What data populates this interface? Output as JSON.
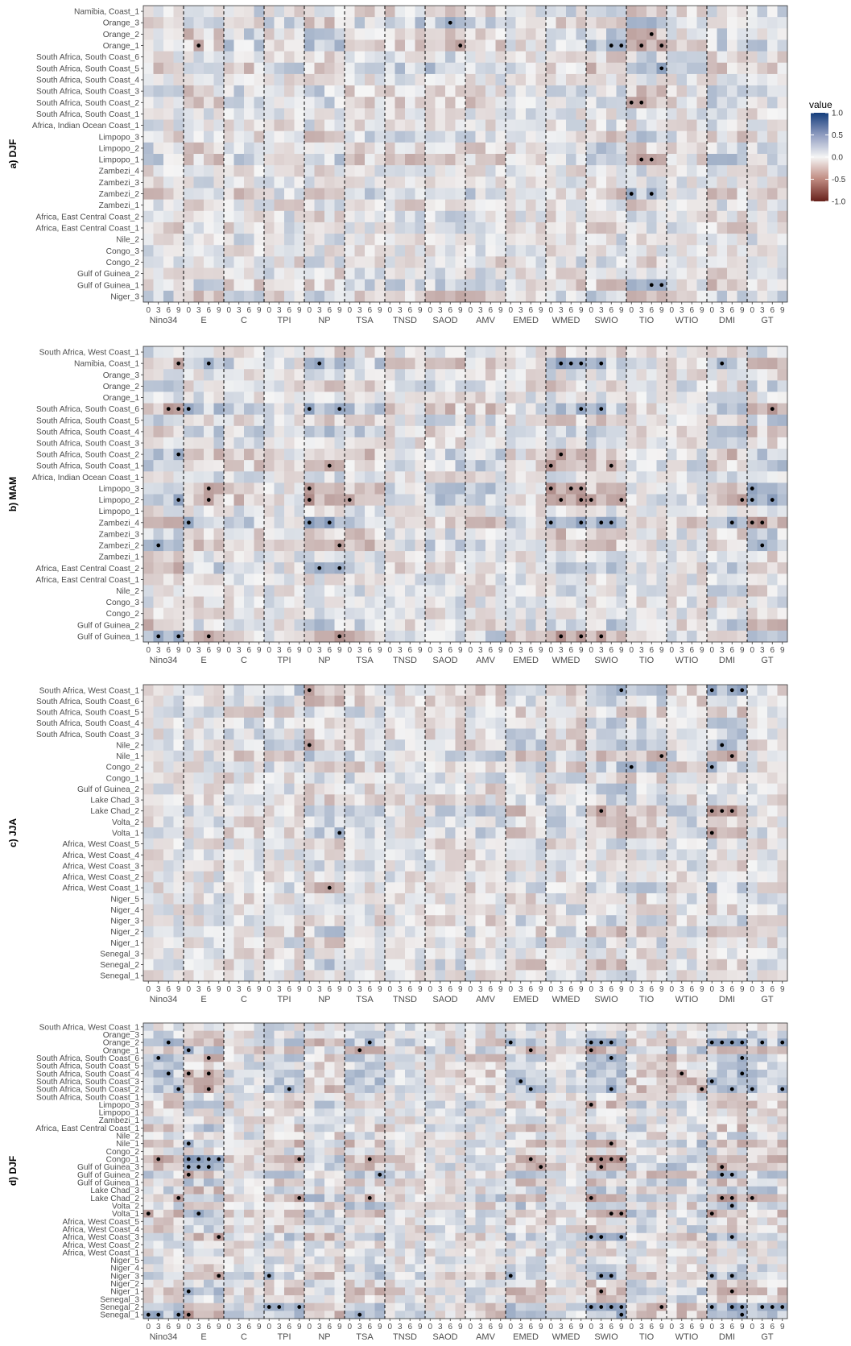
{
  "legend": {
    "title": "value",
    "ticks": [
      "1.0",
      "0.5",
      "0.0",
      "-0.5",
      "-1.0"
    ],
    "tick_values": [
      1.0,
      0.5,
      0.0,
      -0.5,
      -1.0
    ],
    "low_color": "#67211b",
    "mid_color": "#f5f5f5",
    "high_color": "#143d7c"
  },
  "chart_data": [
    {
      "type": "heatmap",
      "panel_label": "a) DJF",
      "x_groups": [
        "Nino34",
        "E",
        "C",
        "TPI",
        "NP",
        "TSA",
        "TNSD",
        "SAOD",
        "AMV",
        "EMED",
        "WMED",
        "SWIO",
        "TIO",
        "WTIO",
        "DMI",
        "GT"
      ],
      "x_lags": [
        "0",
        "3",
        "6",
        "9"
      ],
      "rows": [
        "Namibia, Coast_1",
        "Orange_3",
        "Orange_2",
        "Orange_1",
        "South Africa, South Coast_6",
        "South Africa, South Coast_5",
        "South Africa, South Coast_4",
        "South Africa, South Coast_3",
        "South Africa, South Coast_2",
        "South Africa, South Coast_1",
        "Africa, Indian Ocean Coast_1",
        "Limpopo_3",
        "Limpopo_2",
        "Limpopo_1",
        "Zambezi_4",
        "Zambezi_3",
        "Zambezi_2",
        "Zambezi_1",
        "Africa, East Central Coast_2",
        "Africa, East Central Coast_1",
        "Nile_2",
        "Congo_3",
        "Congo_2",
        "Gulf of Guinea_2",
        "Gulf of Guinea_1",
        "Niger_3"
      ],
      "value_range": [
        -1.0,
        1.0
      ],
      "note": "cell values estimated from colour; dots mark significant correlations"
    },
    {
      "type": "heatmap",
      "panel_label": "b) MAM",
      "x_groups": [
        "Nino34",
        "E",
        "C",
        "TPI",
        "NP",
        "TSA",
        "TNSD",
        "SAOD",
        "AMV",
        "EMED",
        "WMED",
        "SWIO",
        "TIO",
        "WTIO",
        "DMI",
        "GT"
      ],
      "x_lags": [
        "0",
        "3",
        "6",
        "9"
      ],
      "rows": [
        "South Africa, West Coast_1",
        "Namibia, Coast_1",
        "Orange_3",
        "Orange_2",
        "Orange_1",
        "South Africa, South Coast_6",
        "South Africa, South Coast_5",
        "South Africa, South Coast_4",
        "South Africa, South Coast_3",
        "South Africa, South Coast_2",
        "South Africa, South Coast_1",
        "Africa, Indian Ocean Coast_1",
        "Limpopo_3",
        "Limpopo_2",
        "Limpopo_1",
        "Zambezi_4",
        "Zambezi_3",
        "Zambezi_2",
        "Zambezi_1",
        "Africa, East Central Coast_2",
        "Africa, East Central Coast_1",
        "Nile_2",
        "Congo_3",
        "Congo_2",
        "Gulf of Guinea_2",
        "Gulf of Guinea_1"
      ],
      "value_range": [
        -1.0,
        1.0
      ]
    },
    {
      "type": "heatmap",
      "panel_label": "c) JJA",
      "x_groups": [
        "Nino34",
        "E",
        "C",
        "TPI",
        "NP",
        "TSA",
        "TNSD",
        "SAOD",
        "AMV",
        "EMED",
        "WMED",
        "SWIO",
        "TIO",
        "WTIO",
        "DMI",
        "GT"
      ],
      "x_lags": [
        "0",
        "3",
        "6",
        "9"
      ],
      "rows": [
        "South Africa, West Coast_1",
        "South Africa, South Coast_6",
        "South Africa, South Coast_5",
        "South Africa, South Coast_4",
        "South Africa, South Coast_3",
        "Nile_2",
        "Nile_1",
        "Congo_2",
        "Congo_1",
        "Gulf of Guinea_2",
        "Lake Chad_3",
        "Lake Chad_2",
        "Volta_2",
        "Volta_1",
        "Africa, West Coast_5",
        "Africa, West Coast_4",
        "Africa, West Coast_3",
        "Africa, West Coast_2",
        "Africa, West Coast_1",
        "Niger_5",
        "Niger_4",
        "Niger_3",
        "Niger_2",
        "Niger_1",
        "Senegal_3",
        "Senegal_2",
        "Senegal_1"
      ],
      "value_range": [
        -1.0,
        1.0
      ]
    },
    {
      "type": "heatmap",
      "panel_label": "d) DJF",
      "x_groups": [
        "Nino34",
        "E",
        "C",
        "TPI",
        "NP",
        "TSA",
        "TNSD",
        "SAOD",
        "AMV",
        "EMED",
        "WMED",
        "SWIO",
        "TIO",
        "WTIO",
        "DMI",
        "GT"
      ],
      "x_lags": [
        "0",
        "3",
        "6",
        "9"
      ],
      "rows": [
        "South Africa, West Coast_1",
        "Orange_3",
        "Orange_2",
        "Orange_1",
        "South Africa, South Coast_6",
        "South Africa, South Coast_5",
        "South Africa, South Coast_4",
        "South Africa, South Coast_3",
        "South Africa, South Coast_2",
        "South Africa, South Coast_1",
        "Limpopo_3",
        "Limpopo_1",
        "Zambezi_1",
        "Africa, East Central Coast_1",
        "Nile_2",
        "Nile_1",
        "Congo_2",
        "Congo_1",
        "Gulf of Guinea_3",
        "Gulf of Guinea_2",
        "Gulf of Guinea_1",
        "Lake Chad_3",
        "Lake Chad_2",
        "Volta_2",
        "Volta_1",
        "Africa, West Coast_5",
        "Africa, West Coast_4",
        "Africa, West Coast_3",
        "Africa, West Coast_2",
        "Africa, West Coast_1",
        "Niger_5",
        "Niger_4",
        "Niger_3",
        "Niger_2",
        "Niger_1",
        "Senegal_3",
        "Senegal_2",
        "Senegal_1"
      ],
      "value_range": [
        -1.0,
        1.0
      ]
    }
  ]
}
